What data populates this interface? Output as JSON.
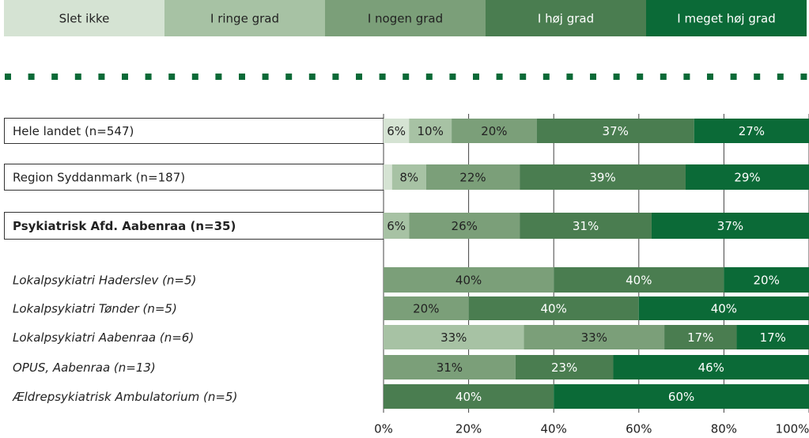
{
  "chart_data": {
    "type": "stacked-bar-horizontal",
    "categories": [
      "Hele landet (n=547)",
      "Region Syddanmark (n=187)",
      "Psykiatrisk Afd. Aabenraa (n=35)",
      "Lokalpsykiatri Haderslev (n=5)",
      "Lokalpsykiatri Tønder (n=5)",
      "Lokalpsykiatri Aabenraa (n=6)",
      "OPUS, Aabenraa (n=13)",
      "Ældrepsykiatrisk Ambulatorium (n=5)"
    ],
    "series": [
      {
        "name": "Slet ikke",
        "color": "#d5e3d3",
        "values": [
          6,
          2,
          null,
          null,
          null,
          null,
          null,
          null
        ],
        "value_labels": [
          "6%",
          null,
          null,
          null,
          null,
          null,
          null,
          null
        ]
      },
      {
        "name": "I ringe grad",
        "color": "#a7c2a4",
        "values": [
          10,
          8,
          6,
          null,
          null,
          33,
          null,
          null
        ],
        "value_labels": [
          "10%",
          "8%",
          "6%",
          null,
          null,
          "33%",
          null,
          null
        ]
      },
      {
        "name": "I nogen grad",
        "color": "#7b9f79",
        "values": [
          20,
          22,
          26,
          40,
          20,
          33,
          31,
          null
        ],
        "value_labels": [
          "20%",
          "22%",
          "26%",
          "40%",
          "20%",
          "33%",
          "31%",
          null
        ]
      },
      {
        "name": "I høj grad",
        "color": "#4a7d50",
        "values": [
          37,
          39,
          31,
          40,
          40,
          17,
          23,
          40
        ],
        "value_labels": [
          "37%",
          "39%",
          "31%",
          "40%",
          "40%",
          "17%",
          "23%",
          "40%"
        ]
      },
      {
        "name": "I meget høj grad",
        "color": "#0b6a37",
        "values": [
          27,
          29,
          37,
          20,
          40,
          17,
          46,
          60
        ],
        "value_labels": [
          "27%",
          "29%",
          "37%",
          "20%",
          "40%",
          "17%",
          "46%",
          "60%"
        ]
      }
    ],
    "xlim": [
      0,
      100
    ],
    "xticks": [
      {
        "value": 0,
        "label": "0%"
      },
      {
        "value": 20,
        "label": "20%"
      },
      {
        "value": 40,
        "label": "40%"
      },
      {
        "value": 60,
        "label": "60%"
      },
      {
        "value": 80,
        "label": "80%"
      },
      {
        "value": 100,
        "label": "100%"
      }
    ]
  }
}
